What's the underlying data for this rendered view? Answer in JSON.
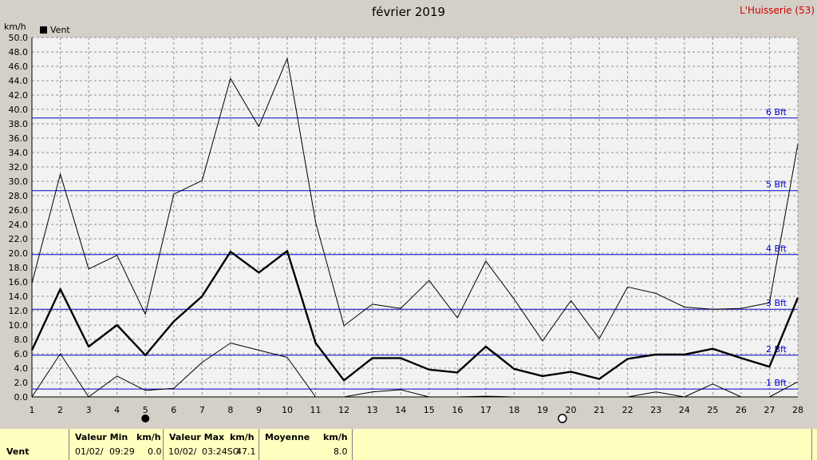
{
  "title": "février 2019",
  "station": "L'Huisserie (53)",
  "y_unit_label": "km/h",
  "chart_data": {
    "type": "line",
    "x": [
      1,
      2,
      3,
      4,
      5,
      6,
      7,
      8,
      9,
      10,
      11,
      12,
      13,
      14,
      15,
      16,
      17,
      18,
      19,
      20,
      21,
      22,
      23,
      24,
      25,
      26,
      27,
      28
    ],
    "ylim": [
      0,
      50
    ],
    "ytick_step": 2,
    "grid": true,
    "legend": [
      {
        "label": "Vent",
        "color": "#000000"
      }
    ],
    "series": [
      {
        "name": "Vent",
        "role": "avg",
        "values": [
          6.5,
          15.0,
          7.0,
          10.0,
          5.8,
          10.5,
          14.0,
          20.2,
          17.3,
          20.3,
          7.5,
          2.3,
          5.4,
          5.4,
          3.8,
          3.4,
          7.0,
          3.9,
          2.9,
          3.5,
          2.5,
          5.3,
          5.9,
          5.9,
          6.7,
          5.4,
          4.2,
          13.8
        ]
      },
      {
        "name": "",
        "role": "max",
        "values": [
          15.8,
          31.0,
          17.8,
          19.7,
          11.5,
          28.2,
          30.1,
          44.3,
          37.6,
          47.1,
          24.3,
          9.9,
          12.9,
          12.3,
          16.2,
          11.0,
          18.9,
          13.6,
          7.8,
          13.4,
          8.1,
          15.3,
          14.4,
          12.5,
          12.2,
          12.3,
          13.1,
          35.2
        ]
      },
      {
        "name": "",
        "role": "min",
        "values": [
          0.0,
          6.0,
          0.0,
          2.9,
          0.9,
          1.2,
          4.8,
          7.5,
          6.5,
          5.5,
          0.0,
          0.0,
          0.7,
          1.0,
          0.0,
          0.0,
          0.1,
          0.0,
          0.0,
          0.0,
          0.0,
          0.0,
          0.7,
          0.0,
          1.8,
          0.0,
          0.0,
          2.1
        ]
      }
    ],
    "reference_lines": [
      {
        "label": "1 Bft",
        "y": 1.1
      },
      {
        "label": "2 Bft",
        "y": 5.8
      },
      {
        "label": "3 Bft",
        "y": 12.2
      },
      {
        "label": "4 Bft",
        "y": 19.8
      },
      {
        "label": "5 Bft",
        "y": 28.7
      },
      {
        "label": "6 Bft",
        "y": 38.8
      }
    ],
    "moon_phases": [
      {
        "day": 5,
        "phase": "new"
      },
      {
        "day": 19.7,
        "phase": "full"
      }
    ]
  },
  "footer": {
    "row_label": "Vent",
    "min": {
      "head": "Valeur Min",
      "unit": "km/h",
      "date": "01/02/",
      "time": "09:29",
      "value": "0.0"
    },
    "max": {
      "head": "Valeur Max",
      "unit": "km/h",
      "date": "10/02/",
      "time": "03:24SO",
      "value": "47.1"
    },
    "avg": {
      "head": "Moyenne",
      "unit": "km/h",
      "value": "8.0"
    }
  }
}
